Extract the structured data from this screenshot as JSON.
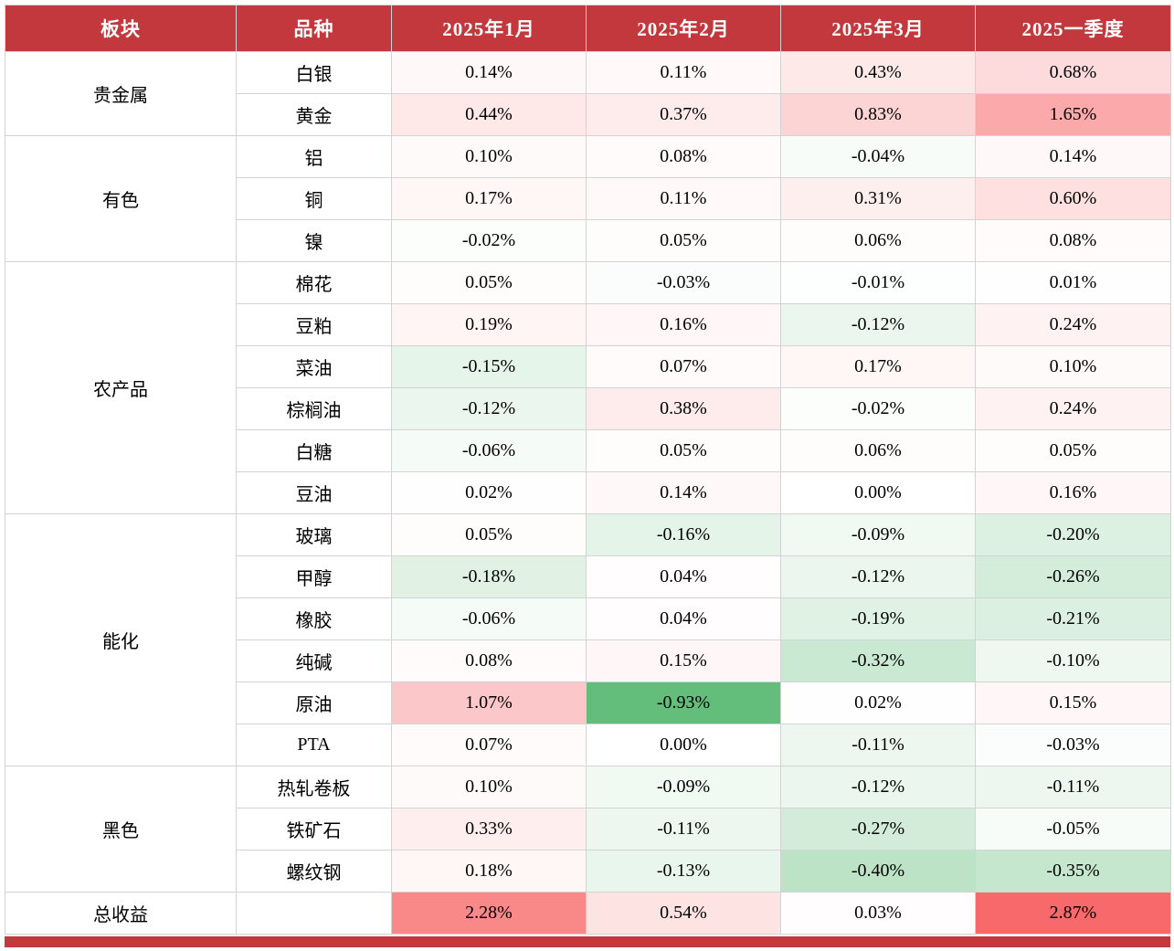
{
  "chart_data": {
    "type": "heatmap",
    "title": "",
    "columns": [
      "板块",
      "品种",
      "2025年1月",
      "2025年2月",
      "2025年3月",
      "2025一季度"
    ],
    "groups": [
      {
        "sector": "贵金属",
        "rows": [
          [
            "白银",
            "0.14%",
            "0.11%",
            "0.43%",
            "0.68%"
          ],
          [
            "黄金",
            "0.44%",
            "0.37%",
            "0.83%",
            "1.65%"
          ]
        ]
      },
      {
        "sector": "有色",
        "rows": [
          [
            "铝",
            "0.10%",
            "0.08%",
            "-0.04%",
            "0.14%"
          ],
          [
            "铜",
            "0.17%",
            "0.11%",
            "0.31%",
            "0.60%"
          ],
          [
            "镍",
            "-0.02%",
            "0.05%",
            "0.06%",
            "0.08%"
          ]
        ]
      },
      {
        "sector": "农产品",
        "rows": [
          [
            "棉花",
            "0.05%",
            "-0.03%",
            "-0.01%",
            "0.01%"
          ],
          [
            "豆粕",
            "0.19%",
            "0.16%",
            "-0.12%",
            "0.24%"
          ],
          [
            "菜油",
            "-0.15%",
            "0.07%",
            "0.17%",
            "0.10%"
          ],
          [
            "棕榈油",
            "-0.12%",
            "0.38%",
            "-0.02%",
            "0.24%"
          ],
          [
            "白糖",
            "-0.06%",
            "0.05%",
            "0.06%",
            "0.05%"
          ],
          [
            "豆油",
            "0.02%",
            "0.14%",
            "0.00%",
            "0.16%"
          ]
        ]
      },
      {
        "sector": "能化",
        "rows": [
          [
            "玻璃",
            "0.05%",
            "-0.16%",
            "-0.09%",
            "-0.20%"
          ],
          [
            "甲醇",
            "-0.18%",
            "0.04%",
            "-0.12%",
            "-0.26%"
          ],
          [
            "橡胶",
            "-0.06%",
            "0.04%",
            "-0.19%",
            "-0.21%"
          ],
          [
            "纯碱",
            "0.08%",
            "0.15%",
            "-0.32%",
            "-0.10%"
          ],
          [
            "原油",
            "1.07%",
            "-0.93%",
            "0.02%",
            "0.15%"
          ],
          [
            "PTA",
            "0.07%",
            "0.00%",
            "-0.11%",
            "-0.03%"
          ]
        ]
      },
      {
        "sector": "黑色",
        "rows": [
          [
            "热轧卷板",
            "0.10%",
            "-0.09%",
            "-0.12%",
            "-0.11%"
          ],
          [
            "铁矿石",
            "0.33%",
            "-0.11%",
            "-0.27%",
            "-0.05%"
          ],
          [
            "螺纹钢",
            "0.18%",
            "-0.13%",
            "-0.40%",
            "-0.35%"
          ]
        ]
      }
    ],
    "total_row": {
      "label": "总收益",
      "values": [
        "2.28%",
        "0.54%",
        "0.03%",
        "2.87%"
      ]
    },
    "heatmap_scale": {
      "max_value": 2.87,
      "min_value": -0.93,
      "max_color": "#F8696B",
      "min_color": "#63BE7B",
      "zero_color": "#FFFFFF"
    }
  },
  "colors": {
    "header_bg": "#C2383C",
    "header_text": "#FFFFFF",
    "grid": "#D3D3D3",
    "footer_bar": "#C2383C",
    "body_text": "#000000"
  }
}
